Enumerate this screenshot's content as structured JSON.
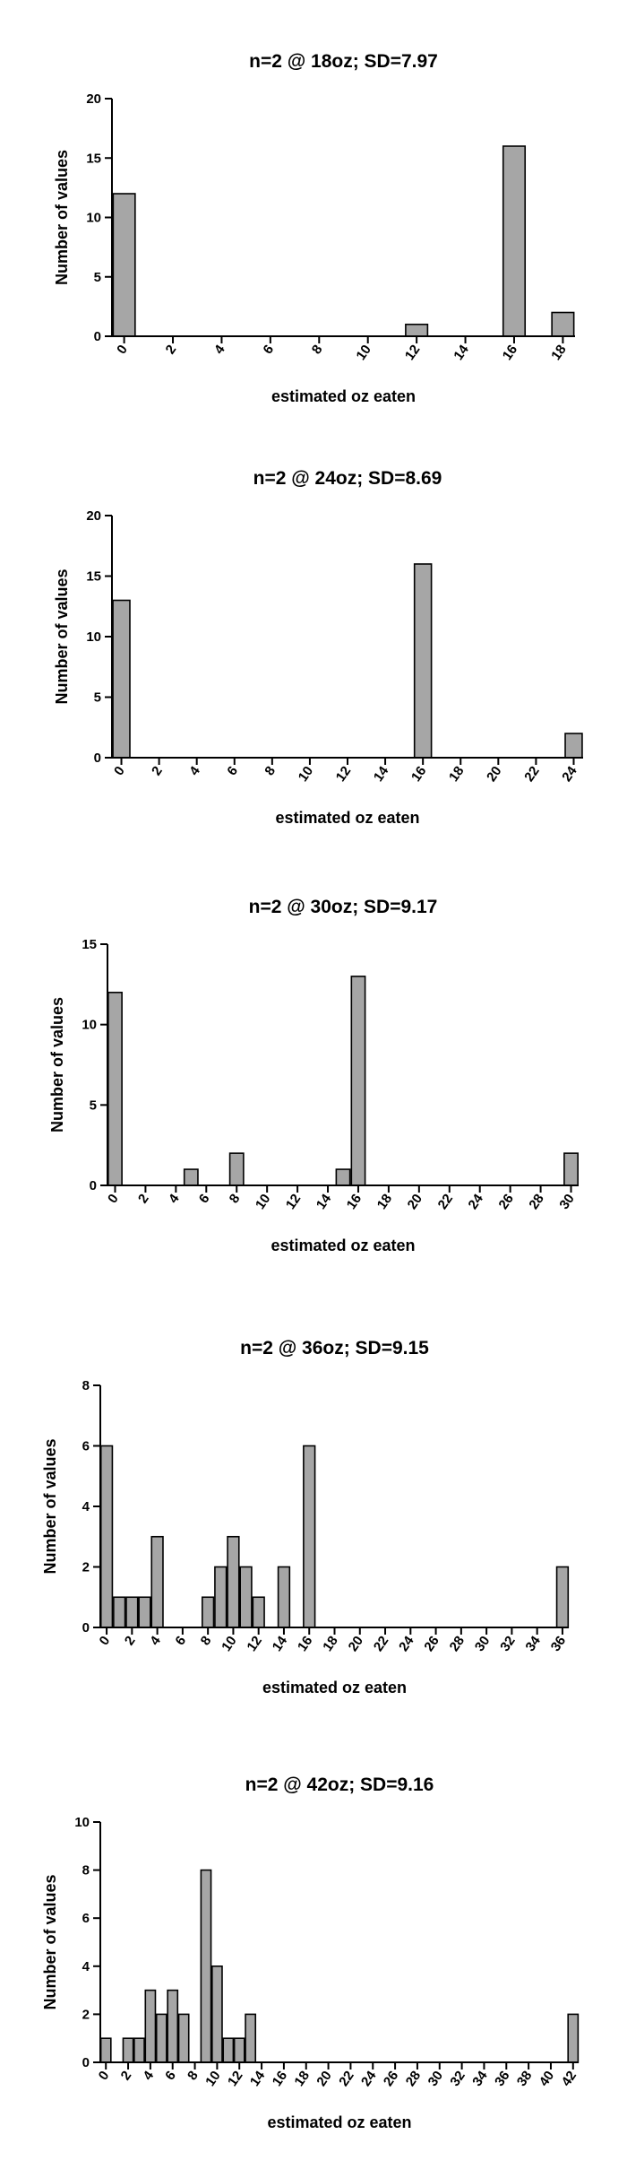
{
  "colors": {
    "bar_fill": "#a6a6a6",
    "bar_stroke": "#000000",
    "axis": "#000000",
    "background": "#ffffff"
  },
  "chart_data": [
    {
      "type": "bar",
      "title": "n=2 @ 18oz; SD=7.97",
      "xlabel": "estimated oz eaten",
      "ylabel": "Number of values",
      "xlim": [
        0,
        18
      ],
      "ylim": [
        0,
        20
      ],
      "xticks": [
        0,
        2,
        4,
        6,
        8,
        10,
        12,
        14,
        16,
        18
      ],
      "yticks": [
        0,
        5,
        10,
        15,
        20
      ],
      "x": [
        0,
        12,
        16,
        18
      ],
      "values": [
        12,
        1,
        16,
        2
      ],
      "grid": false,
      "legend": "none"
    },
    {
      "type": "bar",
      "title": "n=2 @ 24oz; SD=8.69",
      "xlabel": "estimated oz eaten",
      "ylabel": "Number of values",
      "xlim": [
        0,
        24
      ],
      "ylim": [
        0,
        20
      ],
      "xticks": [
        0,
        2,
        4,
        6,
        8,
        10,
        12,
        14,
        16,
        18,
        20,
        22,
        24
      ],
      "yticks": [
        0,
        5,
        10,
        15,
        20
      ],
      "x": [
        0,
        16,
        24
      ],
      "values": [
        13,
        16,
        2
      ],
      "grid": false,
      "legend": "none"
    },
    {
      "type": "bar",
      "title": "n=2 @ 30oz; SD=9.17",
      "xlabel": "estimated oz eaten",
      "ylabel": "Number of values",
      "xlim": [
        0,
        30
      ],
      "ylim": [
        0,
        15
      ],
      "xticks": [
        0,
        2,
        4,
        6,
        8,
        10,
        12,
        14,
        16,
        18,
        20,
        22,
        24,
        26,
        28,
        30
      ],
      "yticks": [
        0,
        5,
        10,
        15
      ],
      "x": [
        0,
        5,
        8,
        15,
        16,
        30
      ],
      "values": [
        12,
        1,
        2,
        1,
        13,
        2
      ],
      "grid": false,
      "legend": "none"
    },
    {
      "type": "bar",
      "title": "n=2 @ 36oz; SD=9.15",
      "xlabel": "estimated oz eaten",
      "ylabel": "Number of values",
      "xlim": [
        0,
        36
      ],
      "ylim": [
        0,
        8
      ],
      "xticks": [
        0,
        2,
        4,
        6,
        8,
        10,
        12,
        14,
        16,
        18,
        20,
        22,
        24,
        26,
        28,
        30,
        32,
        34,
        36
      ],
      "yticks": [
        0,
        2,
        4,
        6,
        8
      ],
      "x": [
        0,
        1,
        2,
        3,
        4,
        8,
        9,
        10,
        11,
        12,
        14,
        16,
        36
      ],
      "values": [
        6,
        1,
        1,
        1,
        3,
        1,
        2,
        3,
        2,
        1,
        2,
        6,
        2
      ],
      "grid": false,
      "legend": "none"
    },
    {
      "type": "bar",
      "title": "n=2 @ 42oz; SD=9.16",
      "xlabel": "estimated oz eaten",
      "ylabel": "Number of values",
      "xlim": [
        0,
        42
      ],
      "ylim": [
        0,
        10
      ],
      "xticks": [
        0,
        2,
        4,
        6,
        8,
        10,
        12,
        14,
        16,
        18,
        20,
        22,
        24,
        26,
        28,
        30,
        32,
        34,
        36,
        38,
        40,
        42
      ],
      "yticks": [
        0,
        2,
        4,
        6,
        8,
        10
      ],
      "x": [
        0,
        2,
        3,
        4,
        5,
        6,
        7,
        9,
        10,
        11,
        12,
        13,
        42
      ],
      "values": [
        1,
        1,
        1,
        3,
        2,
        3,
        2,
        8,
        4,
        1,
        1,
        2,
        2
      ],
      "grid": false,
      "legend": "none"
    }
  ]
}
